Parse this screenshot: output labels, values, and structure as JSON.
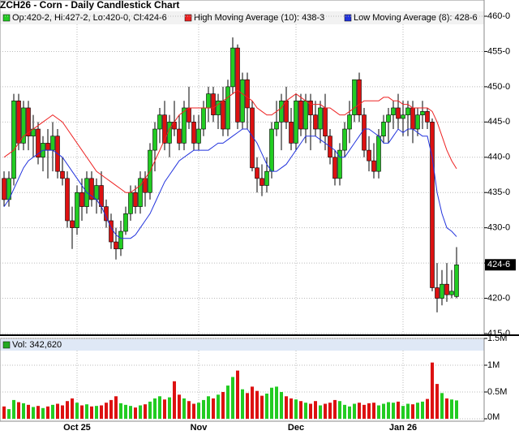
{
  "chart_data": {
    "type": "candlestick",
    "title": "ZCH26 - Corn - Daily Candlestick Chart",
    "ohlc_label": "Op:420-2, Hi:427-2, Lo:420-0, Cl:424-6",
    "categories": [
      null,
      null,
      null,
      null,
      null,
      null,
      null,
      null,
      null,
      null,
      null,
      null,
      null,
      null,
      null,
      "Oct 25",
      null,
      null,
      null,
      null,
      null,
      null,
      null,
      null,
      null,
      null,
      null,
      null,
      null,
      null,
      null,
      null,
      null,
      null,
      null,
      null,
      null,
      null,
      null,
      null,
      "Nov",
      null,
      null,
      null,
      null,
      null,
      null,
      null,
      null,
      null,
      null,
      null,
      null,
      null,
      null,
      null,
      null,
      null,
      null,
      null,
      "Dec",
      null,
      null,
      null,
      null,
      null,
      null,
      null,
      null,
      null,
      null,
      null,
      null,
      null,
      null,
      null,
      null,
      null,
      null,
      null,
      null,
      null,
      "Jan 26",
      null,
      null,
      null,
      null,
      null,
      null,
      null,
      null,
      null,
      null,
      null
    ],
    "open": [
      437,
      434,
      437,
      448,
      442,
      447,
      443,
      444,
      440,
      442,
      441,
      443,
      438,
      437,
      431,
      430,
      435,
      433,
      437,
      434,
      436,
      433,
      431,
      428,
      427,
      429.5,
      432,
      435,
      433,
      437,
      435,
      441,
      444,
      446,
      442,
      445,
      444,
      442,
      447,
      445,
      442,
      444,
      447,
      449,
      446,
      448,
      444,
      450,
      455.5,
      445,
      451,
      447,
      438.5,
      437,
      436,
      438,
      444,
      445,
      448,
      445,
      442,
      448,
      444,
      448,
      446,
      444,
      447,
      443,
      440,
      437,
      441,
      444,
      446,
      451,
      446,
      441,
      439.5,
      438,
      443,
      445,
      446,
      447,
      445.5,
      446,
      447,
      444,
      446,
      446.5,
      445,
      421.5,
      420,
      422,
      420.5,
      420.25
    ],
    "high": [
      438,
      438,
      449,
      449,
      448,
      448,
      446,
      445,
      443,
      444,
      445,
      444,
      440,
      438,
      433,
      436,
      437,
      438,
      438,
      437,
      438,
      434,
      432,
      430,
      431,
      433,
      436,
      436,
      438,
      438,
      442,
      445,
      447,
      448,
      446,
      448,
      446,
      448,
      450,
      446,
      446,
      448,
      450,
      450,
      449,
      450,
      451,
      457,
      456,
      452,
      452,
      448,
      440,
      439,
      440,
      445,
      448,
      449,
      450,
      447,
      449,
      449,
      449,
      449,
      448,
      448,
      449,
      444,
      441,
      442,
      445,
      448,
      451,
      452,
      447,
      443,
      442,
      444,
      446,
      447,
      448,
      449,
      448,
      448,
      448,
      447,
      448,
      447,
      445.5,
      425,
      424,
      425,
      424,
      427.25
    ],
    "low": [
      433,
      433,
      436,
      441,
      441,
      441,
      440,
      439,
      438,
      437,
      438,
      437,
      436,
      430,
      427,
      429,
      431,
      432,
      433,
      432,
      432,
      430,
      427,
      425.5,
      426,
      429,
      431,
      432,
      432,
      433,
      434,
      438,
      442,
      441,
      440,
      443,
      441,
      441,
      444,
      441,
      441,
      443,
      445,
      445,
      444,
      443,
      443,
      449,
      444,
      444,
      444,
      438,
      435,
      434.5,
      435,
      437,
      443,
      441,
      444,
      441,
      441,
      443,
      442,
      441,
      443,
      442,
      441,
      439,
      436,
      436,
      440,
      442,
      445,
      445,
      440,
      438,
      437,
      437,
      442,
      442,
      444,
      444,
      443,
      443,
      442,
      443,
      444,
      444,
      421,
      418,
      419,
      419.5,
      420,
      420
    ],
    "close": [
      434,
      437,
      448,
      442,
      447,
      443,
      444,
      440,
      442,
      441,
      443,
      438,
      437,
      431,
      430,
      435,
      433,
      437,
      434,
      436,
      433,
      431,
      428,
      427,
      429.5,
      432,
      435,
      433,
      437,
      435,
      441,
      444,
      446,
      442,
      445,
      444,
      442,
      447,
      445,
      442,
      444,
      447,
      449,
      446,
      448,
      444,
      450,
      455.5,
      445,
      451,
      447,
      438.5,
      437,
      436,
      438,
      444,
      445,
      448,
      445,
      442,
      448,
      444,
      448,
      446,
      444,
      447,
      443,
      440,
      437,
      441,
      444,
      446,
      451,
      446,
      441,
      439.5,
      438,
      443,
      445,
      446,
      447,
      445.5,
      446,
      447,
      444,
      446,
      446.5,
      445,
      421.5,
      420,
      422,
      420.5,
      421,
      424.75
    ],
    "up_color": "#22cc22",
    "down_color": "#dd1111",
    "ylim": [
      415,
      460
    ],
    "yticks": [
      {
        "value": 415,
        "label": "415-0"
      },
      {
        "value": 420,
        "label": "420-0"
      },
      {
        "value": 425,
        "label": "425-0"
      },
      {
        "value": 430,
        "label": "430-0"
      },
      {
        "value": 435,
        "label": "435-0"
      },
      {
        "value": 440,
        "label": "440-0"
      },
      {
        "value": 445,
        "label": "445-0"
      },
      {
        "value": 450,
        "label": "450-0"
      },
      {
        "value": 455,
        "label": "455-0"
      },
      {
        "value": 460,
        "label": "460-0"
      }
    ],
    "last_label": {
      "value": 424.75,
      "label": "424-6"
    },
    "grid": true,
    "series": [
      {
        "name": "High Moving Average (10): 438-3",
        "color": "#ee2222",
        "values": [
          440,
          440.5,
          441,
          442,
          443,
          443.5,
          444,
          444.5,
          445,
          445.5,
          446,
          445.5,
          445,
          444,
          443,
          442,
          441,
          440,
          439,
          438,
          437.5,
          437,
          436.5,
          436,
          435.5,
          435,
          435,
          435.5,
          436,
          437,
          438,
          439.5,
          441,
          442.5,
          444,
          445,
          446,
          446.5,
          447,
          447,
          447,
          447,
          447,
          447,
          447.5,
          448,
          448.5,
          449,
          449.5,
          449,
          448.5,
          448,
          447,
          446.5,
          446,
          446,
          446.5,
          447,
          448,
          448.5,
          449,
          448.5,
          448,
          447.5,
          447.5,
          447.5,
          447,
          447,
          446.5,
          446,
          446,
          446.5,
          447,
          447.5,
          448,
          448,
          448,
          448,
          448.5,
          448.5,
          448,
          448,
          447.5,
          447.5,
          447,
          447,
          447,
          447,
          446.5,
          445,
          443,
          441,
          439.5,
          438.375
        ]
      },
      {
        "name": "Low Moving Average (8): 428-6",
        "color": "#2233dd",
        "values": [
          433,
          434,
          435.5,
          437,
          438.5,
          439.5,
          440,
          440.5,
          441,
          441,
          441,
          440.5,
          440,
          439,
          438,
          437,
          436,
          435,
          434.5,
          434,
          433,
          431.5,
          430,
          429,
          428.5,
          428.5,
          428.5,
          429,
          430,
          431,
          432,
          433.5,
          435,
          436.5,
          437.5,
          438.5,
          439.5,
          440,
          440.5,
          441,
          441,
          441,
          441,
          441.5,
          442,
          442,
          442.5,
          443,
          443.5,
          444,
          444,
          443,
          442,
          440.5,
          439,
          438,
          438,
          438.5,
          439,
          440,
          441,
          442,
          443,
          443,
          443,
          442.5,
          442,
          441.5,
          441,
          440,
          440,
          441,
          442,
          443,
          444,
          444,
          443.5,
          443,
          442,
          442,
          443,
          444,
          443.5,
          444,
          444,
          443.5,
          443,
          443,
          440,
          435,
          432,
          430,
          429.5,
          428.75
        ]
      }
    ],
    "volume": {
      "label": "Vol: 342,620",
      "ylim": [
        0,
        1500000
      ],
      "yticks": [
        {
          "value": 0,
          "label": "0M"
        },
        {
          "value": 500000,
          "label": "0.5M"
        },
        {
          "value": 1000000,
          "label": "1M"
        },
        {
          "value": 1500000,
          "label": "1.5M"
        }
      ],
      "values": [
        230000,
        180000,
        350000,
        310000,
        290000,
        260000,
        220000,
        240000,
        200000,
        230000,
        260000,
        280000,
        250000,
        330000,
        380000,
        300000,
        250000,
        270000,
        230000,
        240000,
        250000,
        300000,
        350000,
        420000,
        290000,
        260000,
        240000,
        210000,
        250000,
        270000,
        320000,
        380000,
        420000,
        360000,
        400000,
        700000,
        450000,
        380000,
        330000,
        280000,
        300000,
        350000,
        420000,
        380000,
        450000,
        500000,
        620000,
        780000,
        900000,
        550000,
        480000,
        600000,
        520000,
        430000,
        470000,
        580000,
        600000,
        500000,
        420000,
        380000,
        360000,
        330000,
        300000,
        280000,
        330000,
        250000,
        280000,
        300000,
        350000,
        330000,
        260000,
        230000,
        280000,
        300000,
        260000,
        290000,
        300000,
        250000,
        280000,
        310000,
        300000,
        320000,
        240000,
        280000,
        270000,
        300000,
        320000,
        370000,
        1050000,
        650000,
        480000,
        380000,
        360000,
        342620
      ]
    }
  }
}
